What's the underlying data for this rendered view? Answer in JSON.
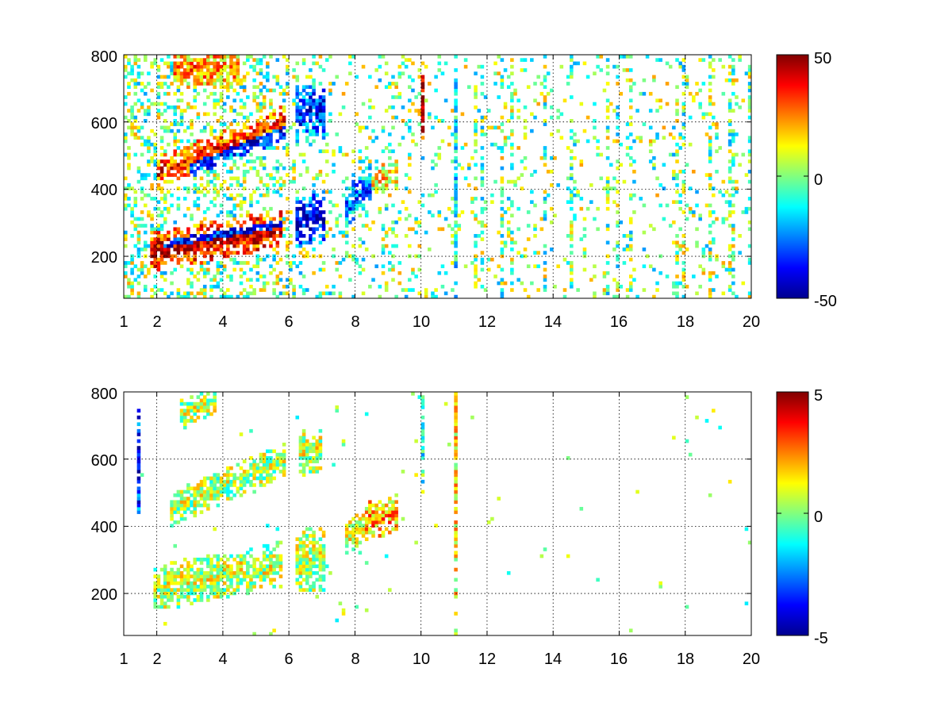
{
  "chart_data": [
    {
      "type": "heatmap",
      "title": "",
      "xlabel": "",
      "ylabel": "",
      "xlim": [
        1,
        20
      ],
      "ylim": [
        75,
        800
      ],
      "x_ticks": [
        1,
        2,
        4,
        6,
        8,
        10,
        12,
        14,
        16,
        18,
        20
      ],
      "x_tick_labels": [
        "1",
        "2",
        "4",
        "6",
        "8",
        "10",
        "12",
        "14",
        "16",
        "18",
        "20"
      ],
      "y_ticks": [
        200,
        400,
        600,
        800
      ],
      "y_tick_labels": [
        "200",
        "400",
        "600",
        "800"
      ],
      "grid": true,
      "colormap": "jet",
      "clim": [
        -50,
        50
      ],
      "colorbar_ticks": [
        -50,
        0,
        50
      ],
      "colorbar_labels": [
        "-50",
        "0",
        "50"
      ],
      "features": [
        {
          "x": [
            1.8,
            5.8
          ],
          "y_start": 215,
          "y_end": 280,
          "width": 60,
          "value": 45
        },
        {
          "x": [
            2.2,
            5.8
          ],
          "y_start": 230,
          "y_end": 290,
          "width": 40,
          "value": -40
        },
        {
          "x": [
            2.0,
            5.9
          ],
          "y_start": 445,
          "y_end": 600,
          "width": 50,
          "value": 35
        },
        {
          "x": [
            3.0,
            5.9
          ],
          "y_start": 470,
          "y_end": 580,
          "width": 35,
          "value": -40
        },
        {
          "x": [
            2.5,
            4.5
          ],
          "y_start": 760,
          "y_end": 760,
          "width": 60,
          "value": 25
        },
        {
          "x": [
            6.2,
            7.1
          ],
          "y_start": 620,
          "y_end": 640,
          "width": 90,
          "value": -35
        },
        {
          "x": [
            6.2,
            7.1
          ],
          "y_start": 300,
          "y_end": 320,
          "width": 80,
          "value": -45
        },
        {
          "x": [
            7.7,
            8.5
          ],
          "y_start": 340,
          "y_end": 420,
          "width": 60,
          "value": -30
        },
        {
          "x": [
            8.5,
            9.3
          ],
          "y_start": 420,
          "y_end": 440,
          "width": 50,
          "value": 15
        },
        {
          "x": [
            10.0,
            10.1
          ],
          "y_start": 650,
          "y_end": 650,
          "width": 120,
          "value": 48
        },
        {
          "x": [
            11.0,
            11.1
          ],
          "y_start": 400,
          "y_end": 400,
          "width": 700,
          "value": -12
        }
      ]
    },
    {
      "type": "heatmap",
      "title": "",
      "xlabel": "",
      "ylabel": "",
      "xlim": [
        1,
        20
      ],
      "ylim": [
        75,
        800
      ],
      "x_ticks": [
        1,
        2,
        4,
        6,
        8,
        10,
        12,
        14,
        16,
        18,
        20
      ],
      "x_tick_labels": [
        "1",
        "2",
        "4",
        "6",
        "8",
        "10",
        "12",
        "14",
        "16",
        "18",
        "20"
      ],
      "y_ticks": [
        200,
        400,
        600,
        800
      ],
      "y_tick_labels": [
        "200",
        "400",
        "600",
        "800"
      ],
      "grid": true,
      "colormap": "jet",
      "clim": [
        -5,
        5
      ],
      "colorbar_ticks": [
        -5,
        0,
        5
      ],
      "colorbar_labels": [
        "-5",
        "0",
        "5"
      ],
      "features": [
        {
          "x": [
            1.9,
            5.8
          ],
          "y_start": 215,
          "y_end": 285,
          "width": 70,
          "value": 0.7
        },
        {
          "x": [
            2.4,
            5.9
          ],
          "y_start": 450,
          "y_end": 600,
          "width": 50,
          "value": 0.5
        },
        {
          "x": [
            2.7,
            3.8
          ],
          "y_start": 740,
          "y_end": 770,
          "width": 40,
          "value": 0.6
        },
        {
          "x": [
            6.2,
            7.1
          ],
          "y_start": 290,
          "y_end": 310,
          "width": 100,
          "value": 0.6
        },
        {
          "x": [
            6.3,
            7.0
          ],
          "y_start": 620,
          "y_end": 630,
          "width": 70,
          "value": 0.7
        },
        {
          "x": [
            7.7,
            8.4
          ],
          "y_start": 360,
          "y_end": 420,
          "width": 50,
          "value": 0.8
        },
        {
          "x": [
            8.3,
            9.3
          ],
          "y_start": 410,
          "y_end": 440,
          "width": 60,
          "value": 2.5
        },
        {
          "x": [
            10.0,
            10.1
          ],
          "y_start": 650,
          "y_end": 650,
          "width": 150,
          "value": -1
        },
        {
          "x": [
            11.0,
            11.1
          ],
          "y_start": 500,
          "y_end": 500,
          "width": 500,
          "value": 1.5
        },
        {
          "x": [
            1.4,
            1.5
          ],
          "y_start": 600,
          "y_end": 600,
          "width": 180,
          "value": -4.5
        }
      ]
    }
  ]
}
